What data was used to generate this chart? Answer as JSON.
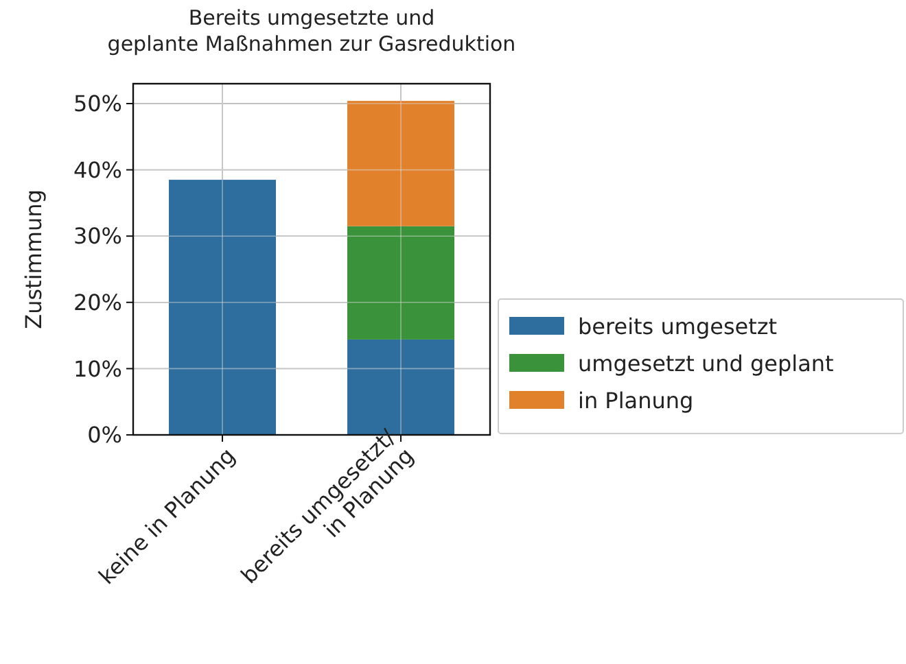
{
  "chart_data": {
    "type": "bar",
    "title": "Bereits umgesetzte und\ngeplante Maßnahmen zur Gasreduktion",
    "ylabel": "Zustimmung",
    "categories": [
      "keine in Planung",
      "bereits umgesetzt/\nin Planung"
    ],
    "stacked": true,
    "series": [
      {
        "name": "bereits umgesetzt",
        "color": "#2e6e9e",
        "values": [
          38.5,
          14.4
        ]
      },
      {
        "name": "umgesetzt und geplant",
        "color": "#3a923a",
        "values": [
          null,
          17.1
        ]
      },
      {
        "name": "in Planung",
        "color": "#e1812c",
        "values": [
          null,
          18.9
        ]
      }
    ],
    "ylim": [
      0,
      53
    ],
    "yticks": [
      {
        "value": 0,
        "label": "0%"
      },
      {
        "value": 10,
        "label": "10%"
      },
      {
        "value": 20,
        "label": "20%"
      },
      {
        "value": 30,
        "label": "30%"
      },
      {
        "value": 40,
        "label": "40%"
      },
      {
        "value": 50,
        "label": "50%"
      }
    ],
    "grid": true,
    "legend": "right"
  }
}
